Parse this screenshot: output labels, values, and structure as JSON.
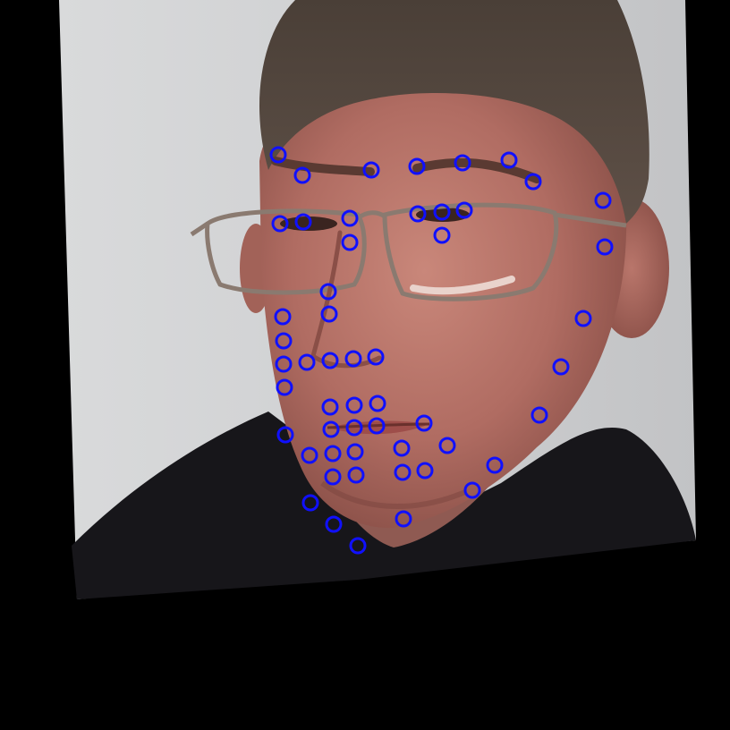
{
  "image": {
    "subject": "face-photo-with-landmarks",
    "background_color": "#000000",
    "marker_color": "#1010ff",
    "landmark_count": 68
  }
}
